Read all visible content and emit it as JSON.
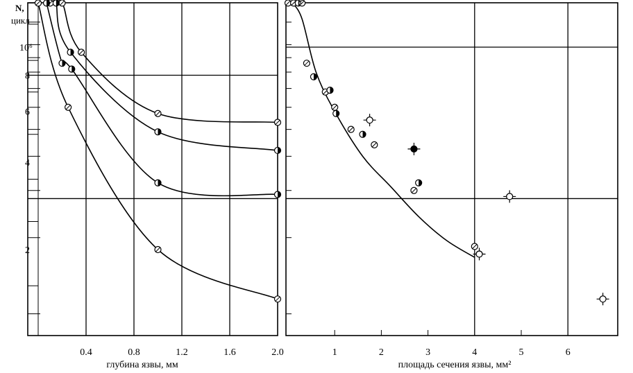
{
  "y_axis": {
    "label_line1": "N,",
    "label_line2": "цикл",
    "ticks": [
      {
        "label": "10⁶",
        "value": 1000000
      },
      {
        "label": "8",
        "value": 800000
      },
      {
        "label": "6",
        "value": 600000
      },
      {
        "label": "4",
        "value": 400000
      },
      {
        "label": "2",
        "value": 200000
      }
    ]
  },
  "chart_data": [
    {
      "type": "line",
      "xlabel": "глубина язвы, мм",
      "ylabel": "N, цикл",
      "xlim": [
        0,
        2.0
      ],
      "x_ticks": [
        "0.4",
        "0.8",
        "1.2",
        "1.6",
        "2.0"
      ],
      "y_scale": "log",
      "grid": true,
      "series": [
        {
          "marker": "open-circle",
          "points": [
            [
              0.1,
              1420000
            ],
            [
              0.2,
              1420000
            ],
            [
              0.36,
              960000
            ],
            [
              1.0,
              590000
            ],
            [
              2.0,
              550000
            ]
          ]
        },
        {
          "marker": "half-filled-circle",
          "points": [
            [
              0.15,
              1420000
            ],
            [
              0.27,
              960000
            ],
            [
              1.0,
              510000
            ],
            [
              2.0,
              440000
            ]
          ]
        },
        {
          "marker": "half-filled-circle",
          "points": [
            [
              0.07,
              1420000
            ],
            [
              0.2,
              880000
            ],
            [
              0.28,
              840000
            ],
            [
              1.0,
              340000
            ],
            [
              2.0,
              310000
            ]
          ]
        },
        {
          "marker": "open-circle",
          "points": [
            [
              0.0,
              1420000
            ],
            [
              0.25,
              620000
            ],
            [
              1.0,
              200000
            ],
            [
              2.0,
              135000
            ]
          ]
        }
      ]
    },
    {
      "type": "scatter",
      "xlabel": "площадь сечения язвы, мм²",
      "ylabel": "N, цикл",
      "xlim": [
        0,
        7
      ],
      "x_ticks": [
        "1",
        "2",
        "3",
        "4",
        "5",
        "6"
      ],
      "y_scale": "log",
      "grid": true,
      "trend_curve": [
        [
          0.1,
          1420000
        ],
        [
          0.3,
          1250000
        ],
        [
          0.6,
          820000
        ],
        [
          1.0,
          600000
        ],
        [
          1.6,
          420000
        ],
        [
          2.2,
          330000
        ],
        [
          2.8,
          260000
        ],
        [
          3.4,
          215000
        ],
        [
          4.0,
          188000
        ]
      ],
      "points": [
        {
          "x": 0.0,
          "y": 1420000,
          "marker": "open-circle"
        },
        {
          "x": 0.12,
          "y": 1420000,
          "marker": "open-circle"
        },
        {
          "x": 0.22,
          "y": 1420000,
          "marker": "half-filled-circle"
        },
        {
          "x": 0.3,
          "y": 1420000,
          "marker": "open-circle"
        },
        {
          "x": 0.27,
          "y": 1480000,
          "marker": "cross-circle"
        },
        {
          "x": 0.4,
          "y": 880000,
          "marker": "open-circle"
        },
        {
          "x": 0.55,
          "y": 790000,
          "marker": "half-filled-circle"
        },
        {
          "x": 0.8,
          "y": 700000,
          "marker": "open-circle"
        },
        {
          "x": 0.9,
          "y": 710000,
          "marker": "half-filled-circle"
        },
        {
          "x": 1.0,
          "y": 620000,
          "marker": "open-circle"
        },
        {
          "x": 1.03,
          "y": 590000,
          "marker": "half-filled-circle"
        },
        {
          "x": 1.35,
          "y": 520000,
          "marker": "open-circle"
        },
        {
          "x": 1.6,
          "y": 500000,
          "marker": "half-filled-circle"
        },
        {
          "x": 1.85,
          "y": 460000,
          "marker": "open-circle"
        },
        {
          "x": 1.75,
          "y": 560000,
          "marker": "cross-circle"
        },
        {
          "x": 2.7,
          "y": 445000,
          "marker": "cross-filled-circle"
        },
        {
          "x": 2.7,
          "y": 320000,
          "marker": "open-circle"
        },
        {
          "x": 2.8,
          "y": 340000,
          "marker": "half-filled-circle"
        },
        {
          "x": 4.0,
          "y": 205000,
          "marker": "open-circle"
        },
        {
          "x": 4.1,
          "y": 193000,
          "marker": "cross-circle"
        },
        {
          "x": 4.75,
          "y": 305000,
          "marker": "cross-circle"
        },
        {
          "x": 6.75,
          "y": 135000,
          "marker": "cross-circle"
        }
      ]
    }
  ]
}
